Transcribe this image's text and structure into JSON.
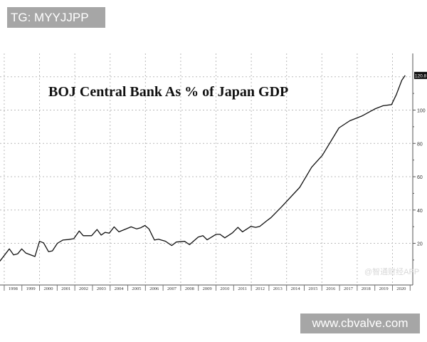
{
  "watermarks": {
    "top_left": "TG: MYYJJPP",
    "bottom_right": "www.cbvalve.com",
    "chart_watermark": "@智通财经APP"
  },
  "chart_data": {
    "type": "line",
    "title": "BOJ Central Bank As % of Japan GDP",
    "xlabel": "",
    "ylabel": "",
    "x_tick_labels": [
      "1998",
      "1999",
      "2000",
      "2001",
      "2002",
      "2003",
      "2004",
      "2005",
      "2006",
      "2007",
      "2008",
      "2009",
      "2010",
      "2011",
      "2012",
      "2013",
      "2014",
      "2015",
      "2016",
      "2017",
      "2018",
      "2019",
      "2020"
    ],
    "y_ticks": [
      20,
      40,
      60,
      80,
      100
    ],
    "y_axis_side": "right",
    "xlim": [
      1997.76,
      2021.15
    ],
    "ylim": [
      -5,
      134
    ],
    "grid": true,
    "last_value_label": "120.8",
    "line_color": "#111111",
    "series": [
      {
        "x": [
          1997.75,
          1998.29,
          1998.53,
          1998.76,
          1998.99,
          1999.22,
          1999.74,
          2000.0,
          2000.23,
          2000.51,
          2000.73,
          2001.01,
          2001.32,
          2001.63,
          2001.94,
          2002.25,
          2002.48,
          2002.95,
          2003.26,
          2003.49,
          2003.72,
          2003.95,
          2004.23,
          2004.5,
          2005.19,
          2005.5,
          2005.74,
          2005.97,
          2006.2,
          2006.51,
          2006.74,
          2007.13,
          2007.49,
          2007.75,
          2008.22,
          2008.5,
          2008.99,
          2009.26,
          2009.5,
          2010.0,
          2010.23,
          2010.5,
          2010.93,
          2011.24,
          2011.5,
          2011.98,
          2012.25,
          2012.48,
          2012.87,
          2013.12,
          2013.73,
          2014.74,
          2015.42,
          2016.03,
          2016.97,
          2017.58,
          2018.26,
          2019.0,
          2019.47,
          2019.95,
          2020.22,
          2020.53,
          2020.72
        ],
        "y": [
          9.3,
          16.7,
          13.1,
          13.7,
          16.7,
          14.2,
          12.1,
          21.2,
          20.3,
          15.0,
          15.5,
          20.0,
          22.0,
          22.3,
          22.8,
          27.4,
          24.6,
          24.6,
          28.3,
          25.0,
          26.6,
          26.1,
          29.9,
          26.9,
          29.9,
          28.7,
          29.4,
          30.7,
          28.7,
          22.0,
          22.5,
          21.3,
          18.7,
          20.8,
          21.2,
          19.2,
          23.8,
          24.6,
          22.1,
          25.4,
          25.4,
          23.3,
          26.3,
          29.6,
          26.9,
          30.2,
          29.6,
          30.2,
          33.5,
          35.5,
          42.1,
          53.6,
          65.7,
          72.9,
          89.3,
          93.6,
          96.4,
          100.7,
          102.6,
          103.3,
          109.3,
          117.9,
          120.8
        ]
      }
    ]
  }
}
